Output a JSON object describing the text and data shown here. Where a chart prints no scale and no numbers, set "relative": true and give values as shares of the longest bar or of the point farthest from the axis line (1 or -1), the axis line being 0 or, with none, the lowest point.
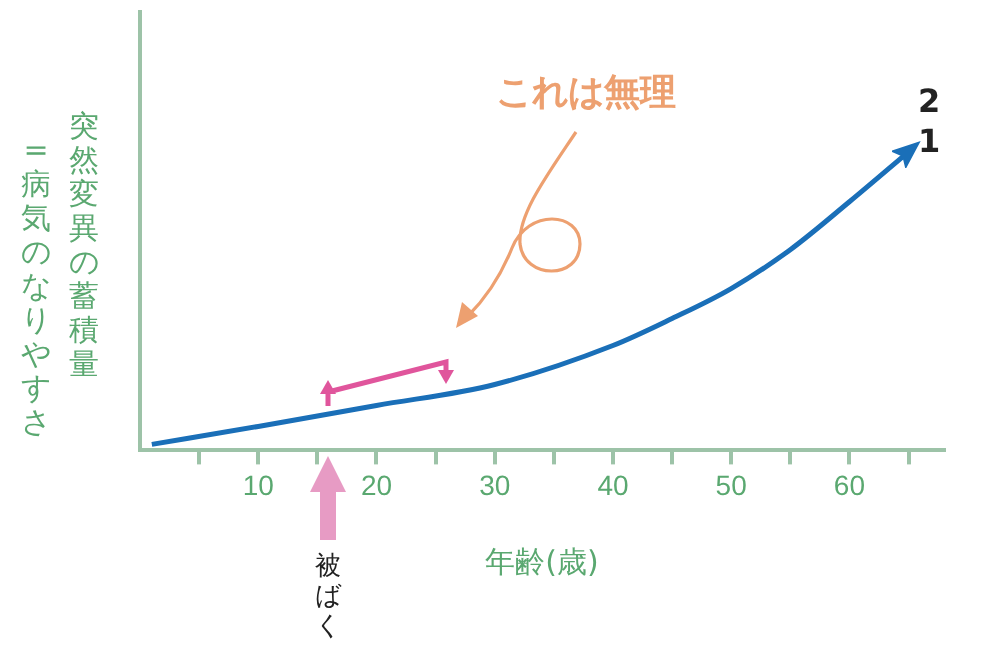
{
  "chart_data": {
    "type": "line",
    "relative": true,
    "xlabel": "年齢(歳)",
    "ylabel": "突然変異の蓄積量\n=病気のなりやすさ",
    "x": [
      1,
      10,
      20,
      30,
      40,
      45,
      50,
      55,
      60,
      65.1
    ],
    "values": [
      0.02,
      0.08,
      0.15,
      0.22,
      0.35,
      0.44,
      0.54,
      0.67,
      0.83,
      1
    ],
    "color": "#1a6fb8",
    "marker": "none",
    "line_style": "solid",
    "grid": false,
    "legend": false,
    "xlim": [
      0,
      68
    ],
    "xticks": [
      {
        "value": 5,
        "label": null
      },
      10,
      {
        "value": 15,
        "label": null
      },
      20,
      {
        "value": 25,
        "label": null
      },
      30,
      {
        "value": 35,
        "label": null
      },
      40,
      {
        "value": 45,
        "label": null
      },
      50,
      {
        "value": 55,
        "label": null
      },
      60,
      {
        "value": 65,
        "label": null
      }
    ],
    "annotations": [
      "これは無理",
      "2",
      "1",
      "被ばく"
    ]
  }
}
